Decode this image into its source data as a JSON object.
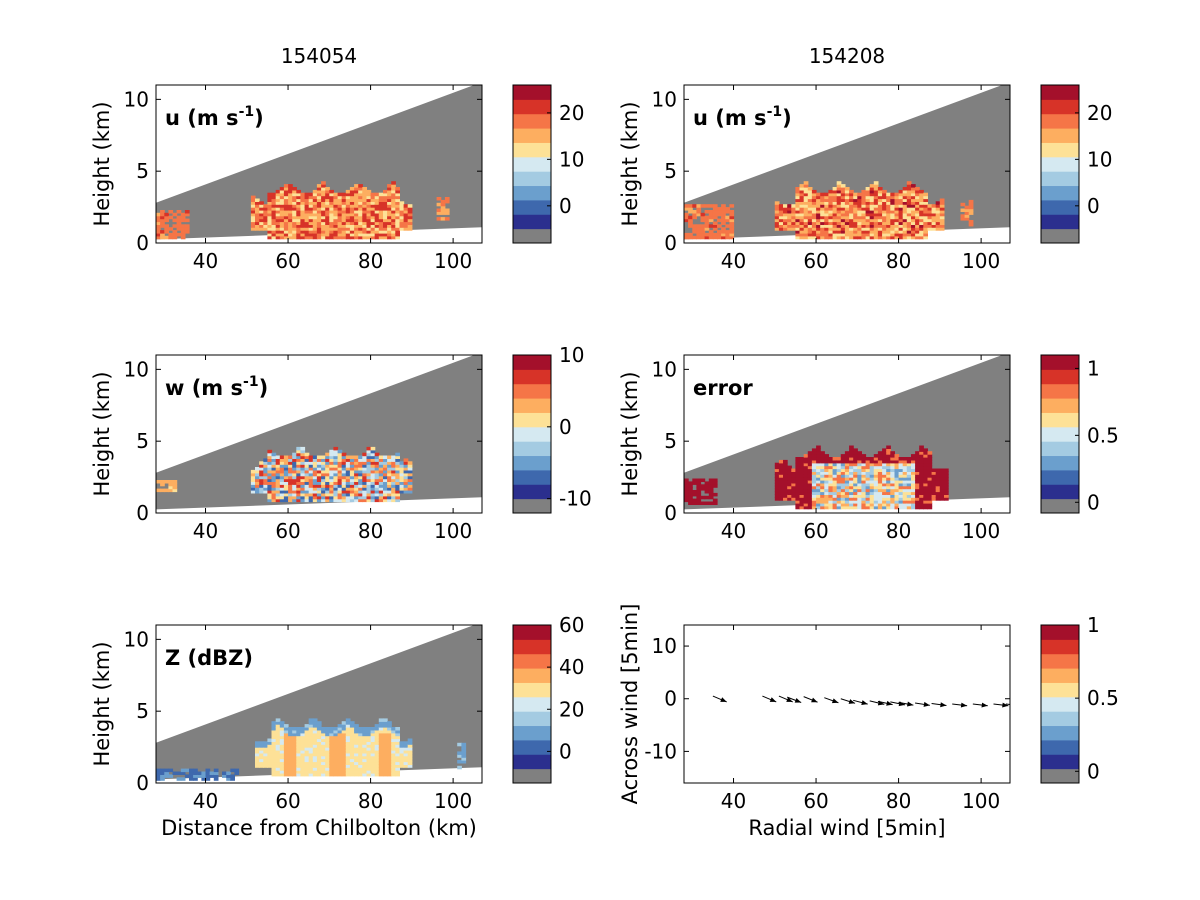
{
  "figure": {
    "column_titles": [
      "154054",
      "154208"
    ]
  },
  "palette": {
    "colors": [
      "#808080",
      "#2b2f8e",
      "#3e68ad",
      "#6b9fcd",
      "#a4cbe2",
      "#d5e9f1",
      "#fde197",
      "#fdae60",
      "#f57547",
      "#d73328",
      "#a4102b"
    ],
    "missing": "#808080"
  },
  "chart_data": [
    {
      "id": "u_154054",
      "type": "heatmap",
      "column_title": "154054",
      "label_main": "u (m s",
      "label_sup": "-1",
      "label_end": ")",
      "xlim": [
        28,
        107
      ],
      "ylim": [
        0,
        11
      ],
      "xticks": [
        40,
        60,
        80,
        100
      ],
      "yticks": [
        0,
        5,
        10
      ],
      "ylabel": "Height (km)",
      "xlabel": "",
      "colorbar": {
        "min": -8,
        "max": 26,
        "ticks": [
          0,
          10,
          20
        ]
      },
      "blob": {
        "x0": 51,
        "x1": 90,
        "y0": 0.3,
        "y1": 4.2,
        "base": 0.72,
        "amp": 0.18,
        "sat": false
      },
      "extras": [
        [
          28,
          36,
          0.3,
          2.3,
          0.75
        ],
        [
          96,
          99,
          1.6,
          3.2,
          0.72
        ]
      ]
    },
    {
      "id": "u_154208",
      "type": "heatmap",
      "column_title": "154208",
      "label_main": "u (m s",
      "label_sup": "-1",
      "label_end": ")",
      "xlim": [
        28,
        107
      ],
      "ylim": [
        0,
        11
      ],
      "xticks": [
        40,
        60,
        80,
        100
      ],
      "yticks": [
        0,
        5,
        10
      ],
      "ylabel": "Height (km)",
      "xlabel": "",
      "colorbar": {
        "min": -8,
        "max": 26,
        "ticks": [
          0,
          10,
          20
        ]
      },
      "blob": {
        "x0": 50,
        "x1": 91,
        "y0": 0.3,
        "y1": 4.2,
        "base": 0.72,
        "amp": 0.2,
        "sat": false
      },
      "extras": [
        [
          28,
          40,
          0.3,
          2.6,
          0.75
        ],
        [
          95,
          98,
          1.2,
          3.0,
          0.72
        ]
      ]
    },
    {
      "id": "w_154054",
      "type": "heatmap",
      "column_title": "",
      "label_main": "w (m s",
      "label_sup": "-1",
      "label_end": ")",
      "xlim": [
        28,
        107
      ],
      "ylim": [
        0,
        11
      ],
      "xticks": [
        40,
        60,
        80,
        100
      ],
      "yticks": [
        0,
        5,
        10
      ],
      "ylabel": "Height (km)",
      "xlabel": "",
      "colorbar": {
        "min": -12,
        "max": 10,
        "ticks": [
          -10,
          0,
          10
        ]
      },
      "blob": {
        "x0": 51,
        "x1": 90,
        "y0": 0.8,
        "y1": 4.6,
        "base": 0.52,
        "amp": 0.38,
        "sat": false
      },
      "extras": [
        [
          28,
          33,
          1.5,
          2.3,
          0.65
        ]
      ]
    },
    {
      "id": "error_154208",
      "type": "heatmap",
      "column_title": "",
      "label_main": "error",
      "label_sup": "",
      "label_end": "",
      "xlim": [
        28,
        107
      ],
      "ylim": [
        0,
        11
      ],
      "xticks": [
        40,
        60,
        80,
        100
      ],
      "yticks": [
        0,
        5,
        10
      ],
      "ylabel": "Height (km)",
      "xlabel": "",
      "colorbar": {
        "min": -0.08,
        "max": 1.1,
        "ticks": [
          0,
          0.5,
          1
        ]
      },
      "blob": {
        "x0": 50,
        "x1": 92,
        "y0": 0.3,
        "y1": 4.6,
        "base": 0.45,
        "amp": 0.35,
        "sat": true
      },
      "extras": [
        [
          28,
          36,
          0.6,
          2.2,
          0.98
        ]
      ]
    },
    {
      "id": "Z_154054",
      "type": "heatmap",
      "column_title": "",
      "label_main": "Z (dBZ)",
      "label_sup": "",
      "label_end": "",
      "xlim": [
        28,
        107
      ],
      "ylim": [
        0,
        11
      ],
      "xticks": [
        40,
        60,
        80,
        100
      ],
      "yticks": [
        0,
        5,
        10
      ],
      "ylabel": "Height (km)",
      "xlabel": "Distance from Chilbolton (km)",
      "colorbar": {
        "min": -15,
        "max": 60,
        "ticks": [
          0,
          20,
          40,
          60
        ]
      },
      "blob": {
        "x0": 52,
        "x1": 90,
        "y0": 0.5,
        "y1": 4.5,
        "base": 0.5,
        "amp": 0.14,
        "sat": false
      },
      "extras": [
        [
          28,
          48,
          0.2,
          1.0,
          0.18
        ],
        [
          101,
          103,
          1.0,
          2.8,
          0.3
        ]
      ]
    },
    {
      "id": "arrows_154208",
      "type": "scatter",
      "column_title": "",
      "xlim": [
        28,
        107
      ],
      "ylim": [
        -16,
        14
      ],
      "xticks": [
        40,
        60,
        80,
        100
      ],
      "yticks": [
        -10,
        0,
        10
      ],
      "ylabel": "Across wind [5min]",
      "xlabel": "Radial wind [5min]",
      "colorbar": {
        "min": -0.08,
        "max": 1.0,
        "ticks": [
          0,
          0.5,
          1
        ]
      },
      "vectors": [
        [
          35,
          0.5
        ],
        [
          47,
          0.5
        ],
        [
          51,
          0.5
        ],
        [
          53,
          0.3
        ],
        [
          57,
          0.4
        ],
        [
          62,
          0.2
        ],
        [
          66,
          0.0
        ],
        [
          69,
          -0.3
        ],
        [
          73,
          -0.4
        ],
        [
          75,
          -0.5
        ],
        [
          78,
          -0.6
        ],
        [
          80,
          -0.7
        ],
        [
          84,
          -0.8
        ],
        [
          88,
          -0.9
        ],
        [
          93,
          -1.0
        ],
        [
          98,
          -1.0
        ],
        [
          103,
          -1.0
        ],
        [
          106,
          -1.0
        ]
      ]
    }
  ]
}
